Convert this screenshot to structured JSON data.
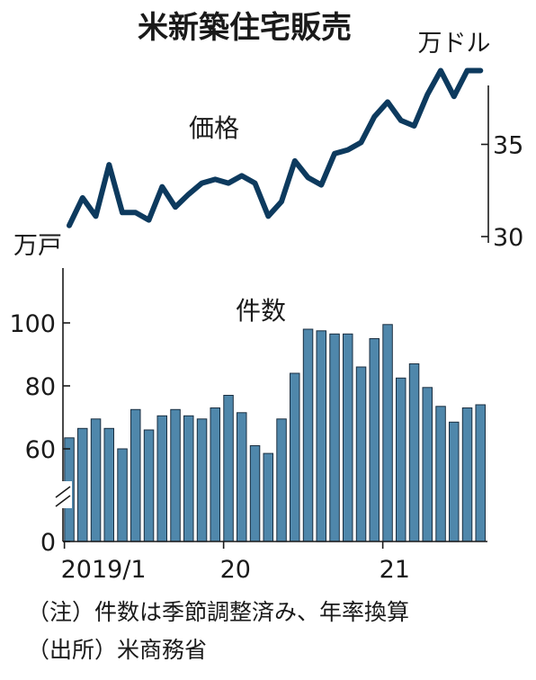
{
  "chart_data": [
    {
      "type": "line",
      "title": "米新築住宅販売",
      "series": [
        {
          "name": "価格",
          "values": [
            30.6,
            32.1,
            31.1,
            33.9,
            31.3,
            31.3,
            30.9,
            32.7,
            31.6,
            32.3,
            32.9,
            33.1,
            32.9,
            33.3,
            32.9,
            31.1,
            31.9,
            34.1,
            33.2,
            32.8,
            34.5,
            34.7,
            35.1,
            36.5,
            37.3,
            36.3,
            36.0,
            37.7,
            39.0,
            37.6,
            39.0,
            39.0
          ]
        }
      ],
      "unit": "万ドル",
      "y_ticks": [
        30,
        35
      ],
      "ylim": [
        30,
        40
      ]
    },
    {
      "type": "bar",
      "series": [
        {
          "name": "件数",
          "values": [
            63.5,
            66.5,
            69.5,
            66.5,
            60,
            72.5,
            66,
            70.5,
            72.5,
            70.5,
            69.5,
            73,
            77,
            71.5,
            61,
            57,
            69.5,
            84,
            98,
            97.5,
            96.5,
            96.5,
            86,
            95,
            99.5,
            82.5,
            87,
            79.5,
            73.5,
            68.5,
            73,
            74
          ]
        }
      ],
      "unit": "万戸",
      "y_ticks": [
        0,
        60,
        80,
        100
      ],
      "ylim": [
        0,
        115
      ],
      "axis_break": true,
      "x_tick_labels": [
        {
          "label": "2019/1",
          "index": 0
        },
        {
          "label": "20",
          "index": 12
        },
        {
          "label": "21",
          "index": 24
        }
      ]
    }
  ],
  "notes": {
    "note1": "（注）件数は季節調整済み、年率換算",
    "note2": "（出所）米商務省"
  },
  "colors": {
    "line": "#0d3a5e",
    "bar_fill": "#4f87ab",
    "bar_stroke": "#1a2e40",
    "axis": "#1a1a1a"
  }
}
